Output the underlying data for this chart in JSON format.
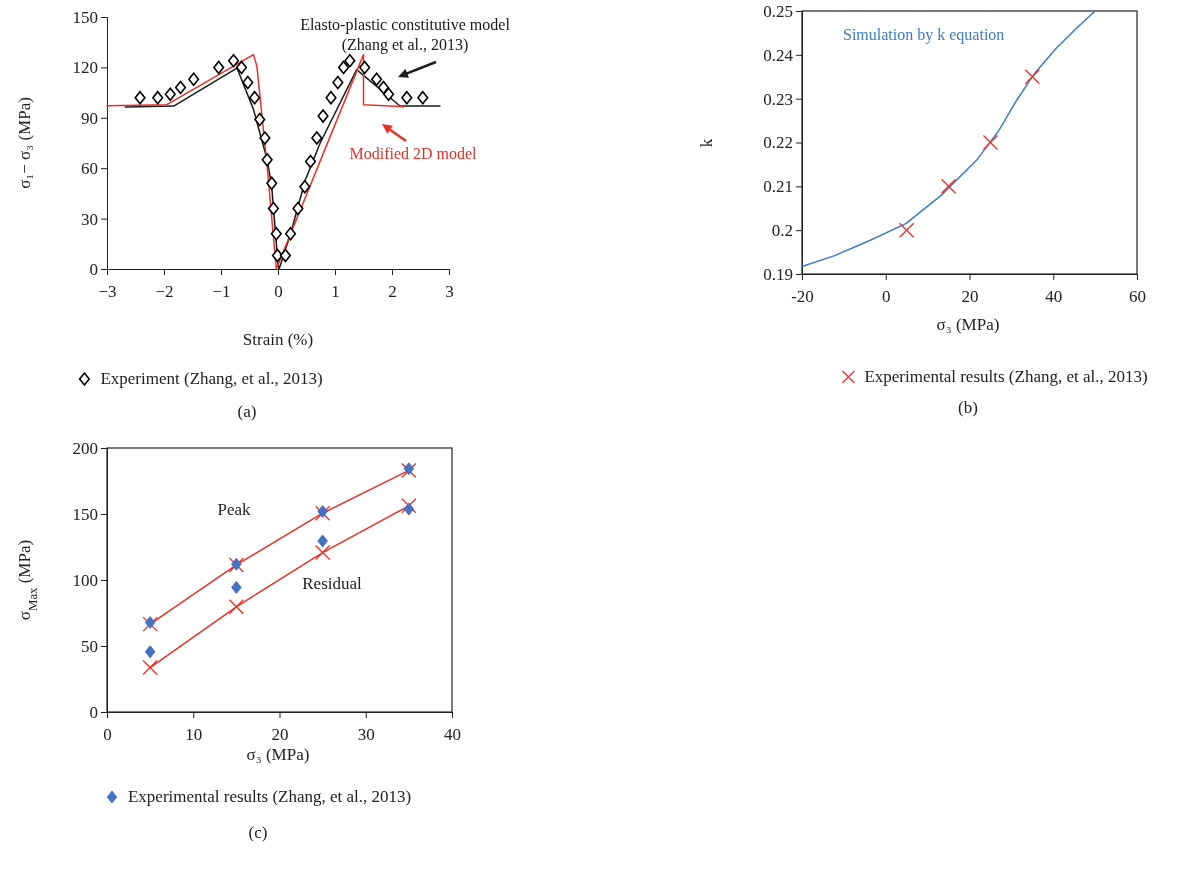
{
  "chart_data": [
    {
      "type": "line",
      "xlabel": "Strain (%)",
      "ylabel": "σ₁− σ₃ (MPa)",
      "xlim": [
        -3,
        3
      ],
      "xticks": [
        {
          "value": -3,
          "label": "−3"
        },
        {
          "value": -2,
          "label": "−2"
        },
        {
          "value": -1,
          "label": "−1"
        },
        0,
        1,
        2,
        3
      ],
      "ylim": [
        0,
        150
      ],
      "yticks": [
        0,
        30,
        60,
        90,
        120,
        150
      ],
      "legend": "bottom",
      "annotations": [
        "(a)"
      ],
      "series": [
        {
          "type": "scatter",
          "name": "Experiment (Zhang, et al., 2013)",
          "color": "#000000",
          "marker": "diamond",
          "x": [
            -2.42,
            -2.11,
            -1.89,
            -1.71,
            -1.48,
            -1.04,
            -0.78,
            -0.64,
            -0.53,
            -0.41,
            -0.32,
            -0.23,
            -0.19,
            -0.11,
            -0.08,
            -0.03,
            -0.01,
            0.13,
            0.22,
            0.35,
            0.47,
            0.57,
            0.68,
            0.79,
            0.93,
            1.05,
            1.15,
            1.26,
            1.52,
            1.73,
            1.85,
            1.94,
            2.26,
            2.54
          ],
          "values": [
            102,
            102,
            104,
            108,
            113,
            120,
            124,
            120,
            111,
            102,
            89,
            78,
            65,
            51,
            36,
            21,
            8,
            8,
            21,
            36,
            49,
            64,
            78,
            91,
            102,
            111,
            120,
            124,
            120,
            113,
            108,
            104,
            102,
            102
          ]
        },
        {
          "name": "Elasto-plastic constitutive model (Zhang et al., 2013)",
          "color": "#1a1a1a",
          "marker": "none",
          "x": [
            -2.68,
            -1.83,
            -0.72,
            -0.43,
            -0.19,
            -0.11,
            0.0,
            0.02,
            0.22,
            0.48,
            0.74,
            1.38,
            2.14,
            2.84
          ],
          "values": [
            96.4,
            97,
            119.6,
            95,
            65,
            49,
            3,
            0,
            21,
            53,
            75,
            118.7,
            97,
            97
          ]
        },
        {
          "name": "Modified 2D model",
          "color": "#e8312a",
          "marker": "none",
          "x": [
            -3,
            -1.95,
            -0.43,
            -0.37,
            -0.19,
            -0.03,
            1.5,
            1.5,
            2.14,
            2.2
          ],
          "values": [
            97.2,
            97.8,
            127.6,
            120.6,
            61,
            0,
            127.6,
            97.8,
            96.8,
            96.4
          ]
        }
      ]
    },
    {
      "type": "scatter",
      "xlabel": "σ₃ (MPa)",
      "ylabel": "k",
      "xlim": [
        -20,
        60
      ],
      "xticks": [
        -20,
        0,
        20,
        40,
        60
      ],
      "ylim": [
        0.19,
        0.25
      ],
      "yticks": [
        0.19,
        0.2,
        0.21,
        0.22,
        0.23,
        0.24,
        0.25
      ],
      "legend": "bottom",
      "annotations": [
        "(b)"
      ],
      "series": [
        {
          "type": "line",
          "name": "Simulation by k equation",
          "color": "#3f7cc4",
          "marker": "none",
          "x": [
            -20,
            -12.2,
            -3.7,
            4.8,
            13.3,
            21.9,
            27,
            31.3,
            35.5,
            40.6,
            45.8,
            50
          ],
          "values": [
            0.1917,
            0.1942,
            0.1977,
            0.2015,
            0.208,
            0.2162,
            0.2227,
            0.2297,
            0.2357,
            0.2414,
            0.2463,
            0.25
          ]
        },
        {
          "name": "Experimental results (Zhang, et al., 2013)",
          "color": "#e8312a",
          "marker": "cross",
          "x": [
            5,
            15,
            25,
            35
          ],
          "values": [
            0.2,
            0.21,
            0.22,
            0.235
          ]
        }
      ]
    },
    {
      "type": "scatter",
      "xlabel": "σ₃ (MPa)",
      "ylabel": "σ$_{Max}$ (MPa)",
      "xlim": [
        0,
        40
      ],
      "xticks": [
        0,
        10,
        20,
        30,
        40
      ],
      "ylim": [
        0,
        200
      ],
      "yticks": [
        0,
        50,
        100,
        150,
        200
      ],
      "legend": "bottom",
      "annotations": [
        "Peak",
        "Residual",
        "(c)"
      ],
      "series": [
        {
          "type": "line",
          "color": "#e8312a",
          "marker": "cross",
          "x": [
            5,
            15,
            25,
            35
          ],
          "values": [
            66.6,
            111.4,
            150.6,
            183
          ]
        },
        {
          "type": "line",
          "color": "#e8312a",
          "marker": "cross",
          "x": [
            5,
            15,
            25,
            35
          ],
          "values": [
            33.7,
            79.7,
            120.8,
            156.2
          ]
        },
        {
          "name": "Experimental results (Zhang, et al., 2013)",
          "color": "#4472c4",
          "marker": "diamond",
          "x": [
            5,
            15,
            25,
            35,
            5,
            15,
            25,
            35
          ],
          "values": [
            67.8,
            111.9,
            151.9,
            184.3,
            45.6,
            94.4,
            129.6,
            153.7
          ]
        }
      ]
    }
  ]
}
